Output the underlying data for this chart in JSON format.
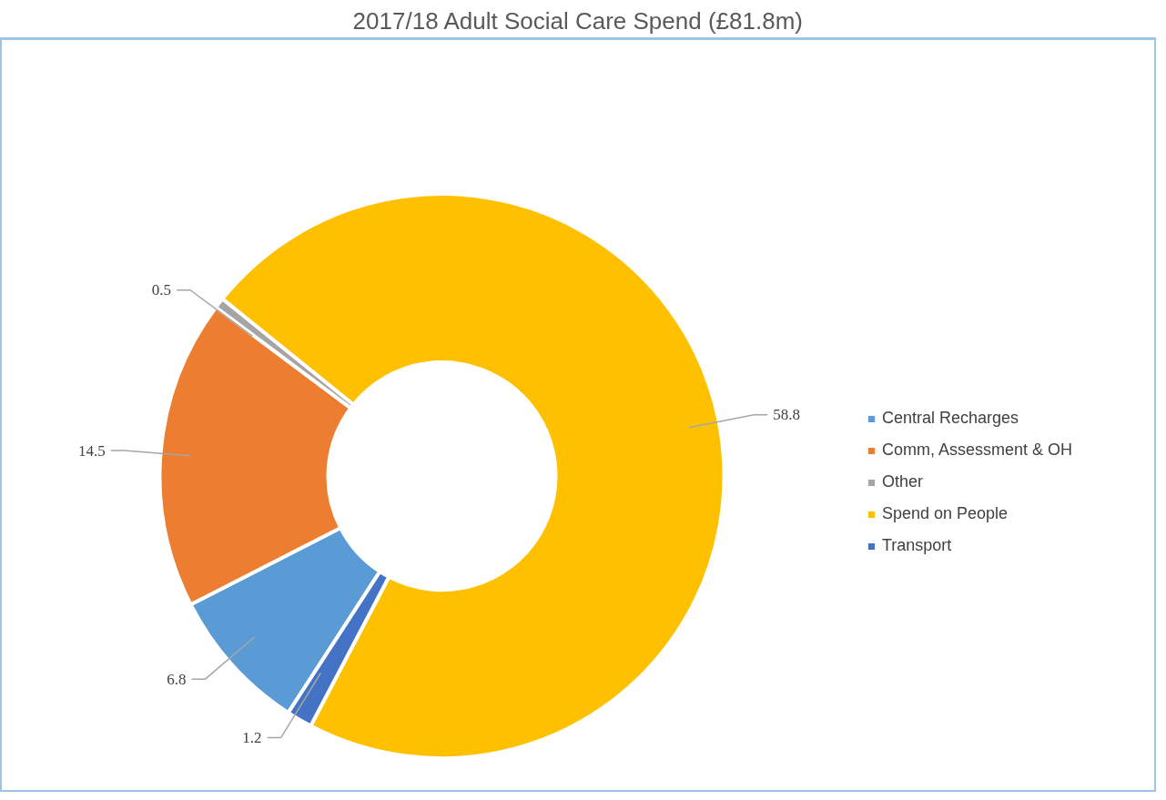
{
  "chart_data": {
    "type": "donut",
    "title": "2017/18 Adult Social Care Spend (£81.8m)",
    "categories": [
      "Central Recharges",
      "Comm, Assessment & OH",
      "Other",
      "Spend on People",
      "Transport"
    ],
    "values": [
      6.8,
      14.5,
      0.5,
      58.8,
      1.2
    ],
    "colors": [
      "#5b9bd5",
      "#ed7d31",
      "#a5a5a5",
      "#ffc000",
      "#4472c4"
    ],
    "data_labels": true,
    "legend": "right"
  }
}
